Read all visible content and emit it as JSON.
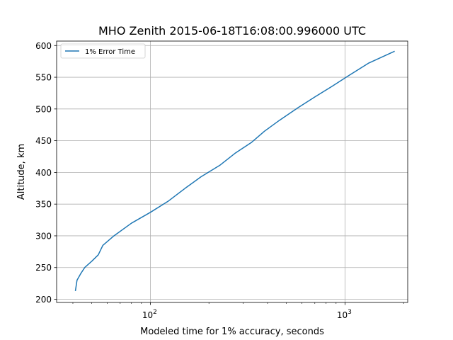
{
  "chart_data": {
    "type": "line",
    "title": "MHO Zenith 2015-06-18T16:08:00.996000 UTC",
    "xlabel": "Modeled time for 1% accuracy, seconds",
    "ylabel": "Altitude, km",
    "xscale": "log",
    "xlim": [
      33,
      2100
    ],
    "ylim": [
      195,
      607
    ],
    "grid": true,
    "legend_position": "top-left",
    "x_major_ticks": [
      {
        "value": 100,
        "base": "10",
        "exp": "2"
      },
      {
        "value": 1000,
        "base": "10",
        "exp": "3"
      }
    ],
    "x_minor_ticks": [
      40,
      50,
      60,
      70,
      80,
      90,
      200,
      300,
      400,
      500,
      600,
      700,
      800,
      900,
      2000
    ],
    "y_ticks": [
      200,
      250,
      300,
      350,
      400,
      450,
      500,
      550,
      600
    ],
    "series": [
      {
        "name": "1% Error Time",
        "color": "#1f77b4",
        "x": [
          41.2,
          42.0,
          43.8,
          46.0,
          50.0,
          54.0,
          57.0,
          65.0,
          80.0,
          100.0,
          124.0,
          151.0,
          182.0,
          227.0,
          272.0,
          330.0,
          386.0,
          460.0,
          574.0,
          700.0,
          851.0,
          1038.0,
          1318.0,
          1800.0
        ],
        "y": [
          213,
          230,
          240,
          250,
          260,
          270,
          285,
          300,
          320,
          337,
          355,
          375,
          393,
          411,
          430,
          447,
          465,
          482,
          502,
          519,
          535,
          552,
          572,
          591
        ]
      }
    ]
  }
}
